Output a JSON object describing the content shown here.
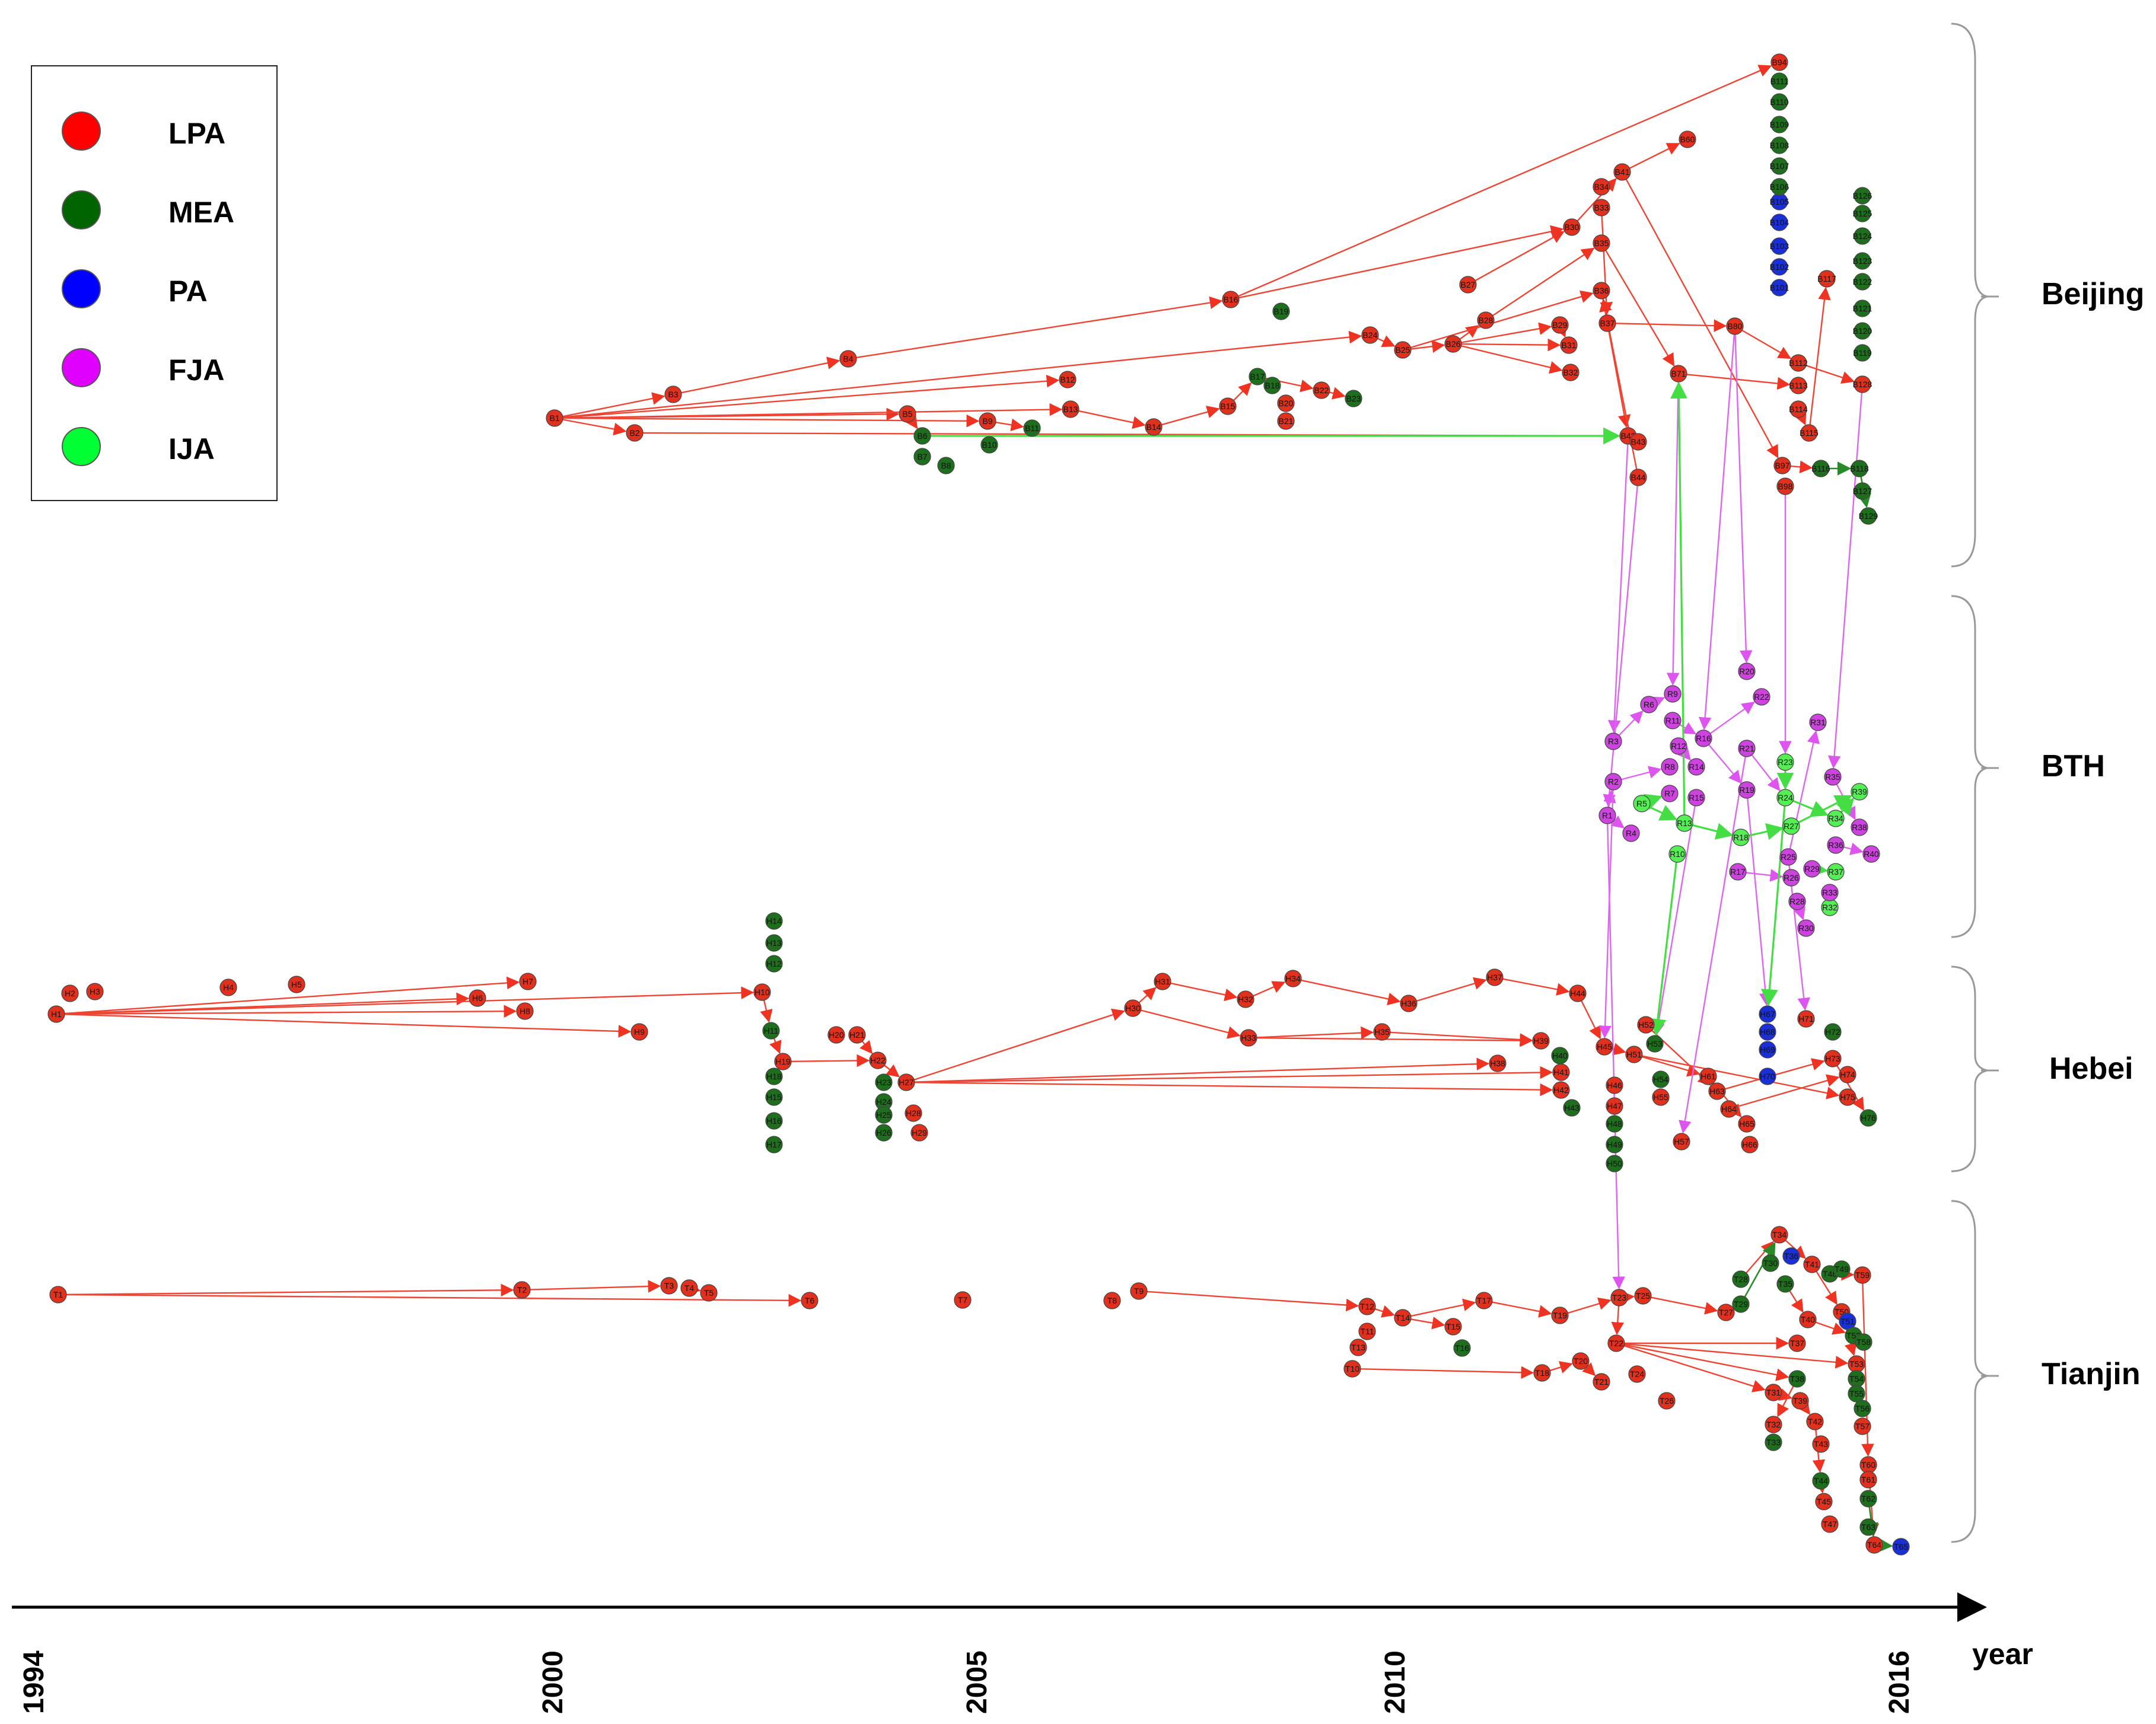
{
  "legend": {
    "items": [
      {
        "label": "LPA",
        "color": "#ff0000"
      },
      {
        "label": "MEA",
        "color": "#006400"
      },
      {
        "label": "PA",
        "color": "#0000ff"
      },
      {
        "label": "FJA",
        "color": "#e000ff"
      },
      {
        "label": "IJA",
        "color": "#00ff33"
      }
    ]
  },
  "regions": {
    "beijing": "Beijing",
    "bth": "BTH",
    "hebei": "Hebei",
    "tianjin": "Tianjin"
  },
  "axis": {
    "title": "year",
    "ticks": [
      "1994",
      "2000",
      "2005",
      "2010",
      "2016"
    ]
  },
  "colors": {
    "LPA": "#e0301e",
    "MEA": "#1e6e1e",
    "PA": "#1a2fd6",
    "FJA": "#cc44dd",
    "IJA": "#55ee55",
    "edge_LPA": "#ee4433",
    "edge_FJA": "#dd66ee",
    "edge_IJA": "#44dd44",
    "edge_MEA": "#2a8a2a"
  },
  "diagram": {
    "nodes": [
      {
        "id": "B1",
        "type": "LPA"
      },
      {
        "id": "B2",
        "type": "LPA"
      },
      {
        "id": "B3",
        "type": "LPA"
      },
      {
        "id": "B4",
        "type": "LPA"
      },
      {
        "id": "B5",
        "type": "LPA"
      },
      {
        "id": "B6",
        "type": "MEA"
      },
      {
        "id": "B7",
        "type": "MEA"
      },
      {
        "id": "B8",
        "type": "MEA"
      },
      {
        "id": "B9",
        "type": "LPA"
      },
      {
        "id": "B10",
        "type": "MEA"
      },
      {
        "id": "B11",
        "type": "MEA"
      },
      {
        "id": "B12",
        "type": "LPA"
      },
      {
        "id": "B13",
        "type": "LPA"
      },
      {
        "id": "B14",
        "type": "LPA"
      },
      {
        "id": "B15",
        "type": "LPA"
      },
      {
        "id": "B16",
        "type": "LPA"
      },
      {
        "id": "B17",
        "type": "MEA"
      },
      {
        "id": "B18",
        "type": "MEA"
      },
      {
        "id": "B19",
        "type": "MEA"
      },
      {
        "id": "B20",
        "type": "LPA"
      },
      {
        "id": "B21",
        "type": "LPA"
      },
      {
        "id": "B22",
        "type": "LPA"
      },
      {
        "id": "B23",
        "type": "MEA"
      },
      {
        "id": "B24",
        "type": "LPA"
      },
      {
        "id": "B25",
        "type": "LPA"
      },
      {
        "id": "B26",
        "type": "LPA"
      },
      {
        "id": "B27",
        "type": "LPA"
      },
      {
        "id": "B28",
        "type": "LPA"
      },
      {
        "id": "B29",
        "type": "LPA"
      },
      {
        "id": "B30",
        "type": "LPA"
      },
      {
        "id": "B31",
        "type": "LPA"
      },
      {
        "id": "B32",
        "type": "LPA"
      },
      {
        "id": "B33",
        "type": "LPA"
      },
      {
        "id": "B34",
        "type": "LPA"
      },
      {
        "id": "B35",
        "type": "LPA"
      },
      {
        "id": "B36",
        "type": "LPA"
      },
      {
        "id": "B37",
        "type": "LPA"
      },
      {
        "id": "B41",
        "type": "LPA"
      },
      {
        "id": "B42",
        "type": "LPA"
      },
      {
        "id": "B43",
        "type": "LPA"
      },
      {
        "id": "B44",
        "type": "LPA"
      },
      {
        "id": "B60",
        "type": "LPA"
      },
      {
        "id": "B71",
        "type": "LPA"
      },
      {
        "id": "B80",
        "type": "LPA"
      },
      {
        "id": "B94",
        "type": "LPA"
      },
      {
        "id": "B97",
        "type": "LPA"
      },
      {
        "id": "B98",
        "type": "LPA"
      },
      {
        "id": "B101",
        "type": "PA"
      },
      {
        "id": "B102",
        "type": "PA"
      },
      {
        "id": "B103",
        "type": "PA"
      },
      {
        "id": "B104",
        "type": "PA"
      },
      {
        "id": "B105",
        "type": "PA"
      },
      {
        "id": "B106",
        "type": "MEA"
      },
      {
        "id": "B107",
        "type": "MEA"
      },
      {
        "id": "B108",
        "type": "MEA"
      },
      {
        "id": "B109",
        "type": "MEA"
      },
      {
        "id": "B110",
        "type": "MEA"
      },
      {
        "id": "B111",
        "type": "MEA"
      },
      {
        "id": "B112",
        "type": "LPA"
      },
      {
        "id": "B113",
        "type": "LPA"
      },
      {
        "id": "B114",
        "type": "LPA"
      },
      {
        "id": "B115",
        "type": "LPA"
      },
      {
        "id": "B116",
        "type": "MEA"
      },
      {
        "id": "B117",
        "type": "LPA"
      },
      {
        "id": "B118",
        "type": "MEA"
      },
      {
        "id": "B119",
        "type": "MEA"
      },
      {
        "id": "B120",
        "type": "MEA"
      },
      {
        "id": "B121",
        "type": "MEA"
      },
      {
        "id": "B122",
        "type": "MEA"
      },
      {
        "id": "B123",
        "type": "MEA"
      },
      {
        "id": "B124",
        "type": "MEA"
      },
      {
        "id": "B125",
        "type": "MEA"
      },
      {
        "id": "B126",
        "type": "MEA"
      },
      {
        "id": "B127",
        "type": "MEA"
      },
      {
        "id": "B128",
        "type": "LPA"
      },
      {
        "id": "B129",
        "type": "MEA"
      },
      {
        "id": "R1",
        "type": "FJA"
      },
      {
        "id": "R2",
        "type": "FJA"
      },
      {
        "id": "R3",
        "type": "FJA"
      },
      {
        "id": "R4",
        "type": "FJA"
      },
      {
        "id": "R5",
        "type": "IJA"
      },
      {
        "id": "R6",
        "type": "FJA"
      },
      {
        "id": "R7",
        "type": "FJA"
      },
      {
        "id": "R8",
        "type": "FJA"
      },
      {
        "id": "R9",
        "type": "FJA"
      },
      {
        "id": "R10",
        "type": "IJA"
      },
      {
        "id": "R11",
        "type": "FJA"
      },
      {
        "id": "R12",
        "type": "FJA"
      },
      {
        "id": "R13",
        "type": "IJA"
      },
      {
        "id": "R14",
        "type": "FJA"
      },
      {
        "id": "R15",
        "type": "FJA"
      },
      {
        "id": "R16",
        "type": "FJA"
      },
      {
        "id": "R17",
        "type": "FJA"
      },
      {
        "id": "R18",
        "type": "IJA"
      },
      {
        "id": "R19",
        "type": "FJA"
      },
      {
        "id": "R20",
        "type": "FJA"
      },
      {
        "id": "R21",
        "type": "FJA"
      },
      {
        "id": "R22",
        "type": "FJA"
      },
      {
        "id": "R23",
        "type": "IJA"
      },
      {
        "id": "R24",
        "type": "IJA"
      },
      {
        "id": "R25",
        "type": "FJA"
      },
      {
        "id": "R26",
        "type": "FJA"
      },
      {
        "id": "R27",
        "type": "IJA"
      },
      {
        "id": "R28",
        "type": "FJA"
      },
      {
        "id": "R29",
        "type": "FJA"
      },
      {
        "id": "R30",
        "type": "FJA"
      },
      {
        "id": "R31",
        "type": "FJA"
      },
      {
        "id": "R32",
        "type": "IJA"
      },
      {
        "id": "R33",
        "type": "FJA"
      },
      {
        "id": "R34",
        "type": "IJA"
      },
      {
        "id": "R35",
        "type": "FJA"
      },
      {
        "id": "R36",
        "type": "FJA"
      },
      {
        "id": "R37",
        "type": "IJA"
      },
      {
        "id": "R38",
        "type": "FJA"
      },
      {
        "id": "R39",
        "type": "IJA"
      },
      {
        "id": "R40",
        "type": "FJA"
      },
      {
        "id": "H1",
        "type": "LPA"
      },
      {
        "id": "H2",
        "type": "LPA"
      },
      {
        "id": "H3",
        "type": "LPA"
      },
      {
        "id": "H4",
        "type": "LPA"
      },
      {
        "id": "H5",
        "type": "LPA"
      },
      {
        "id": "H6",
        "type": "LPA"
      },
      {
        "id": "H7",
        "type": "LPA"
      },
      {
        "id": "H8",
        "type": "LPA"
      },
      {
        "id": "H9",
        "type": "LPA"
      },
      {
        "id": "H10",
        "type": "LPA"
      },
      {
        "id": "H11",
        "type": "MEA"
      },
      {
        "id": "H12",
        "type": "MEA"
      },
      {
        "id": "H13",
        "type": "MEA"
      },
      {
        "id": "H14",
        "type": "MEA"
      },
      {
        "id": "H15",
        "type": "MEA"
      },
      {
        "id": "H16",
        "type": "MEA"
      },
      {
        "id": "H17",
        "type": "MEA"
      },
      {
        "id": "H18",
        "type": "MEA"
      },
      {
        "id": "H19",
        "type": "LPA"
      },
      {
        "id": "H20",
        "type": "LPA"
      },
      {
        "id": "H21",
        "type": "LPA"
      },
      {
        "id": "H22",
        "type": "LPA"
      },
      {
        "id": "H23",
        "type": "MEA"
      },
      {
        "id": "H24",
        "type": "MEA"
      },
      {
        "id": "H25",
        "type": "MEA"
      },
      {
        "id": "H26",
        "type": "MEA"
      },
      {
        "id": "H27",
        "type": "LPA"
      },
      {
        "id": "H28",
        "type": "LPA"
      },
      {
        "id": "H29",
        "type": "LPA"
      },
      {
        "id": "H30",
        "type": "LPA"
      },
      {
        "id": "H31",
        "type": "LPA"
      },
      {
        "id": "H32",
        "type": "LPA"
      },
      {
        "id": "H33",
        "type": "LPA"
      },
      {
        "id": "H34",
        "type": "LPA"
      },
      {
        "id": "H35",
        "type": "LPA"
      },
      {
        "id": "H36",
        "type": "LPA"
      },
      {
        "id": "H37",
        "type": "LPA"
      },
      {
        "id": "H38",
        "type": "LPA"
      },
      {
        "id": "H39",
        "type": "LPA"
      },
      {
        "id": "H40",
        "type": "MEA"
      },
      {
        "id": "H41",
        "type": "LPA"
      },
      {
        "id": "H42",
        "type": "LPA"
      },
      {
        "id": "H43",
        "type": "MEA"
      },
      {
        "id": "H44",
        "type": "LPA"
      },
      {
        "id": "H45",
        "type": "LPA"
      },
      {
        "id": "H46",
        "type": "LPA"
      },
      {
        "id": "H47",
        "type": "LPA"
      },
      {
        "id": "H48",
        "type": "MEA"
      },
      {
        "id": "H49",
        "type": "MEA"
      },
      {
        "id": "H50",
        "type": "MEA"
      },
      {
        "id": "H51",
        "type": "LPA"
      },
      {
        "id": "H52",
        "type": "LPA"
      },
      {
        "id": "H53",
        "type": "MEA"
      },
      {
        "id": "H54",
        "type": "MEA"
      },
      {
        "id": "H55",
        "type": "LPA"
      },
      {
        "id": "H57",
        "type": "LPA"
      },
      {
        "id": "H61",
        "type": "LPA"
      },
      {
        "id": "H63",
        "type": "LPA"
      },
      {
        "id": "H64",
        "type": "LPA"
      },
      {
        "id": "H65",
        "type": "LPA"
      },
      {
        "id": "H66",
        "type": "LPA"
      },
      {
        "id": "H67",
        "type": "PA"
      },
      {
        "id": "H68",
        "type": "PA"
      },
      {
        "id": "H69",
        "type": "PA"
      },
      {
        "id": "H70",
        "type": "PA"
      },
      {
        "id": "H71",
        "type": "LPA"
      },
      {
        "id": "H72",
        "type": "MEA"
      },
      {
        "id": "H73",
        "type": "LPA"
      },
      {
        "id": "H74",
        "type": "LPA"
      },
      {
        "id": "H75",
        "type": "LPA"
      },
      {
        "id": "H76",
        "type": "MEA"
      },
      {
        "id": "T1",
        "type": "LPA"
      },
      {
        "id": "T2",
        "type": "LPA"
      },
      {
        "id": "T3",
        "type": "LPA"
      },
      {
        "id": "T4",
        "type": "LPA"
      },
      {
        "id": "T5",
        "type": "LPA"
      },
      {
        "id": "T6",
        "type": "LPA"
      },
      {
        "id": "T7",
        "type": "LPA"
      },
      {
        "id": "T8",
        "type": "LPA"
      },
      {
        "id": "T9",
        "type": "LPA"
      },
      {
        "id": "T10",
        "type": "LPA"
      },
      {
        "id": "T11",
        "type": "LPA"
      },
      {
        "id": "T12",
        "type": "LPA"
      },
      {
        "id": "T13",
        "type": "LPA"
      },
      {
        "id": "T14",
        "type": "LPA"
      },
      {
        "id": "T15",
        "type": "LPA"
      },
      {
        "id": "T16",
        "type": "MEA"
      },
      {
        "id": "T17",
        "type": "LPA"
      },
      {
        "id": "T18",
        "type": "LPA"
      },
      {
        "id": "T19",
        "type": "LPA"
      },
      {
        "id": "T20",
        "type": "LPA"
      },
      {
        "id": "T21",
        "type": "LPA"
      },
      {
        "id": "T22",
        "type": "LPA"
      },
      {
        "id": "T23",
        "type": "LPA"
      },
      {
        "id": "T24",
        "type": "LPA"
      },
      {
        "id": "T25",
        "type": "LPA"
      },
      {
        "id": "T26",
        "type": "LPA"
      },
      {
        "id": "T27",
        "type": "LPA"
      },
      {
        "id": "T28",
        "type": "MEA"
      },
      {
        "id": "T29",
        "type": "MEA"
      },
      {
        "id": "T30",
        "type": "MEA"
      },
      {
        "id": "T31",
        "type": "LPA"
      },
      {
        "id": "T32",
        "type": "LPA"
      },
      {
        "id": "T33",
        "type": "MEA"
      },
      {
        "id": "T34",
        "type": "LPA"
      },
      {
        "id": "T35",
        "type": "MEA"
      },
      {
        "id": "T36",
        "type": "PA"
      },
      {
        "id": "T37",
        "type": "LPA"
      },
      {
        "id": "T38",
        "type": "MEA"
      },
      {
        "id": "T39",
        "type": "LPA"
      },
      {
        "id": "T40",
        "type": "LPA"
      },
      {
        "id": "T41",
        "type": "LPA"
      },
      {
        "id": "T42",
        "type": "LPA"
      },
      {
        "id": "T43",
        "type": "LPA"
      },
      {
        "id": "T44",
        "type": "MEA"
      },
      {
        "id": "T45",
        "type": "LPA"
      },
      {
        "id": "T47",
        "type": "LPA"
      },
      {
        "id": "T48",
        "type": "MEA"
      },
      {
        "id": "T49",
        "type": "MEA"
      },
      {
        "id": "T50",
        "type": "LPA"
      },
      {
        "id": "T51",
        "type": "PA"
      },
      {
        "id": "T52",
        "type": "MEA"
      },
      {
        "id": "T53",
        "type": "LPA"
      },
      {
        "id": "T54",
        "type": "MEA"
      },
      {
        "id": "T55",
        "type": "MEA"
      },
      {
        "id": "T56",
        "type": "MEA"
      },
      {
        "id": "T57",
        "type": "LPA"
      },
      {
        "id": "T58",
        "type": "MEA"
      },
      {
        "id": "T59",
        "type": "LPA"
      },
      {
        "id": "T60",
        "type": "LPA"
      },
      {
        "id": "T61",
        "type": "LPA"
      },
      {
        "id": "T62",
        "type": "MEA"
      },
      {
        "id": "T63",
        "type": "MEA"
      },
      {
        "id": "T64",
        "type": "LPA"
      },
      {
        "id": "T65",
        "type": "PA"
      }
    ]
  }
}
